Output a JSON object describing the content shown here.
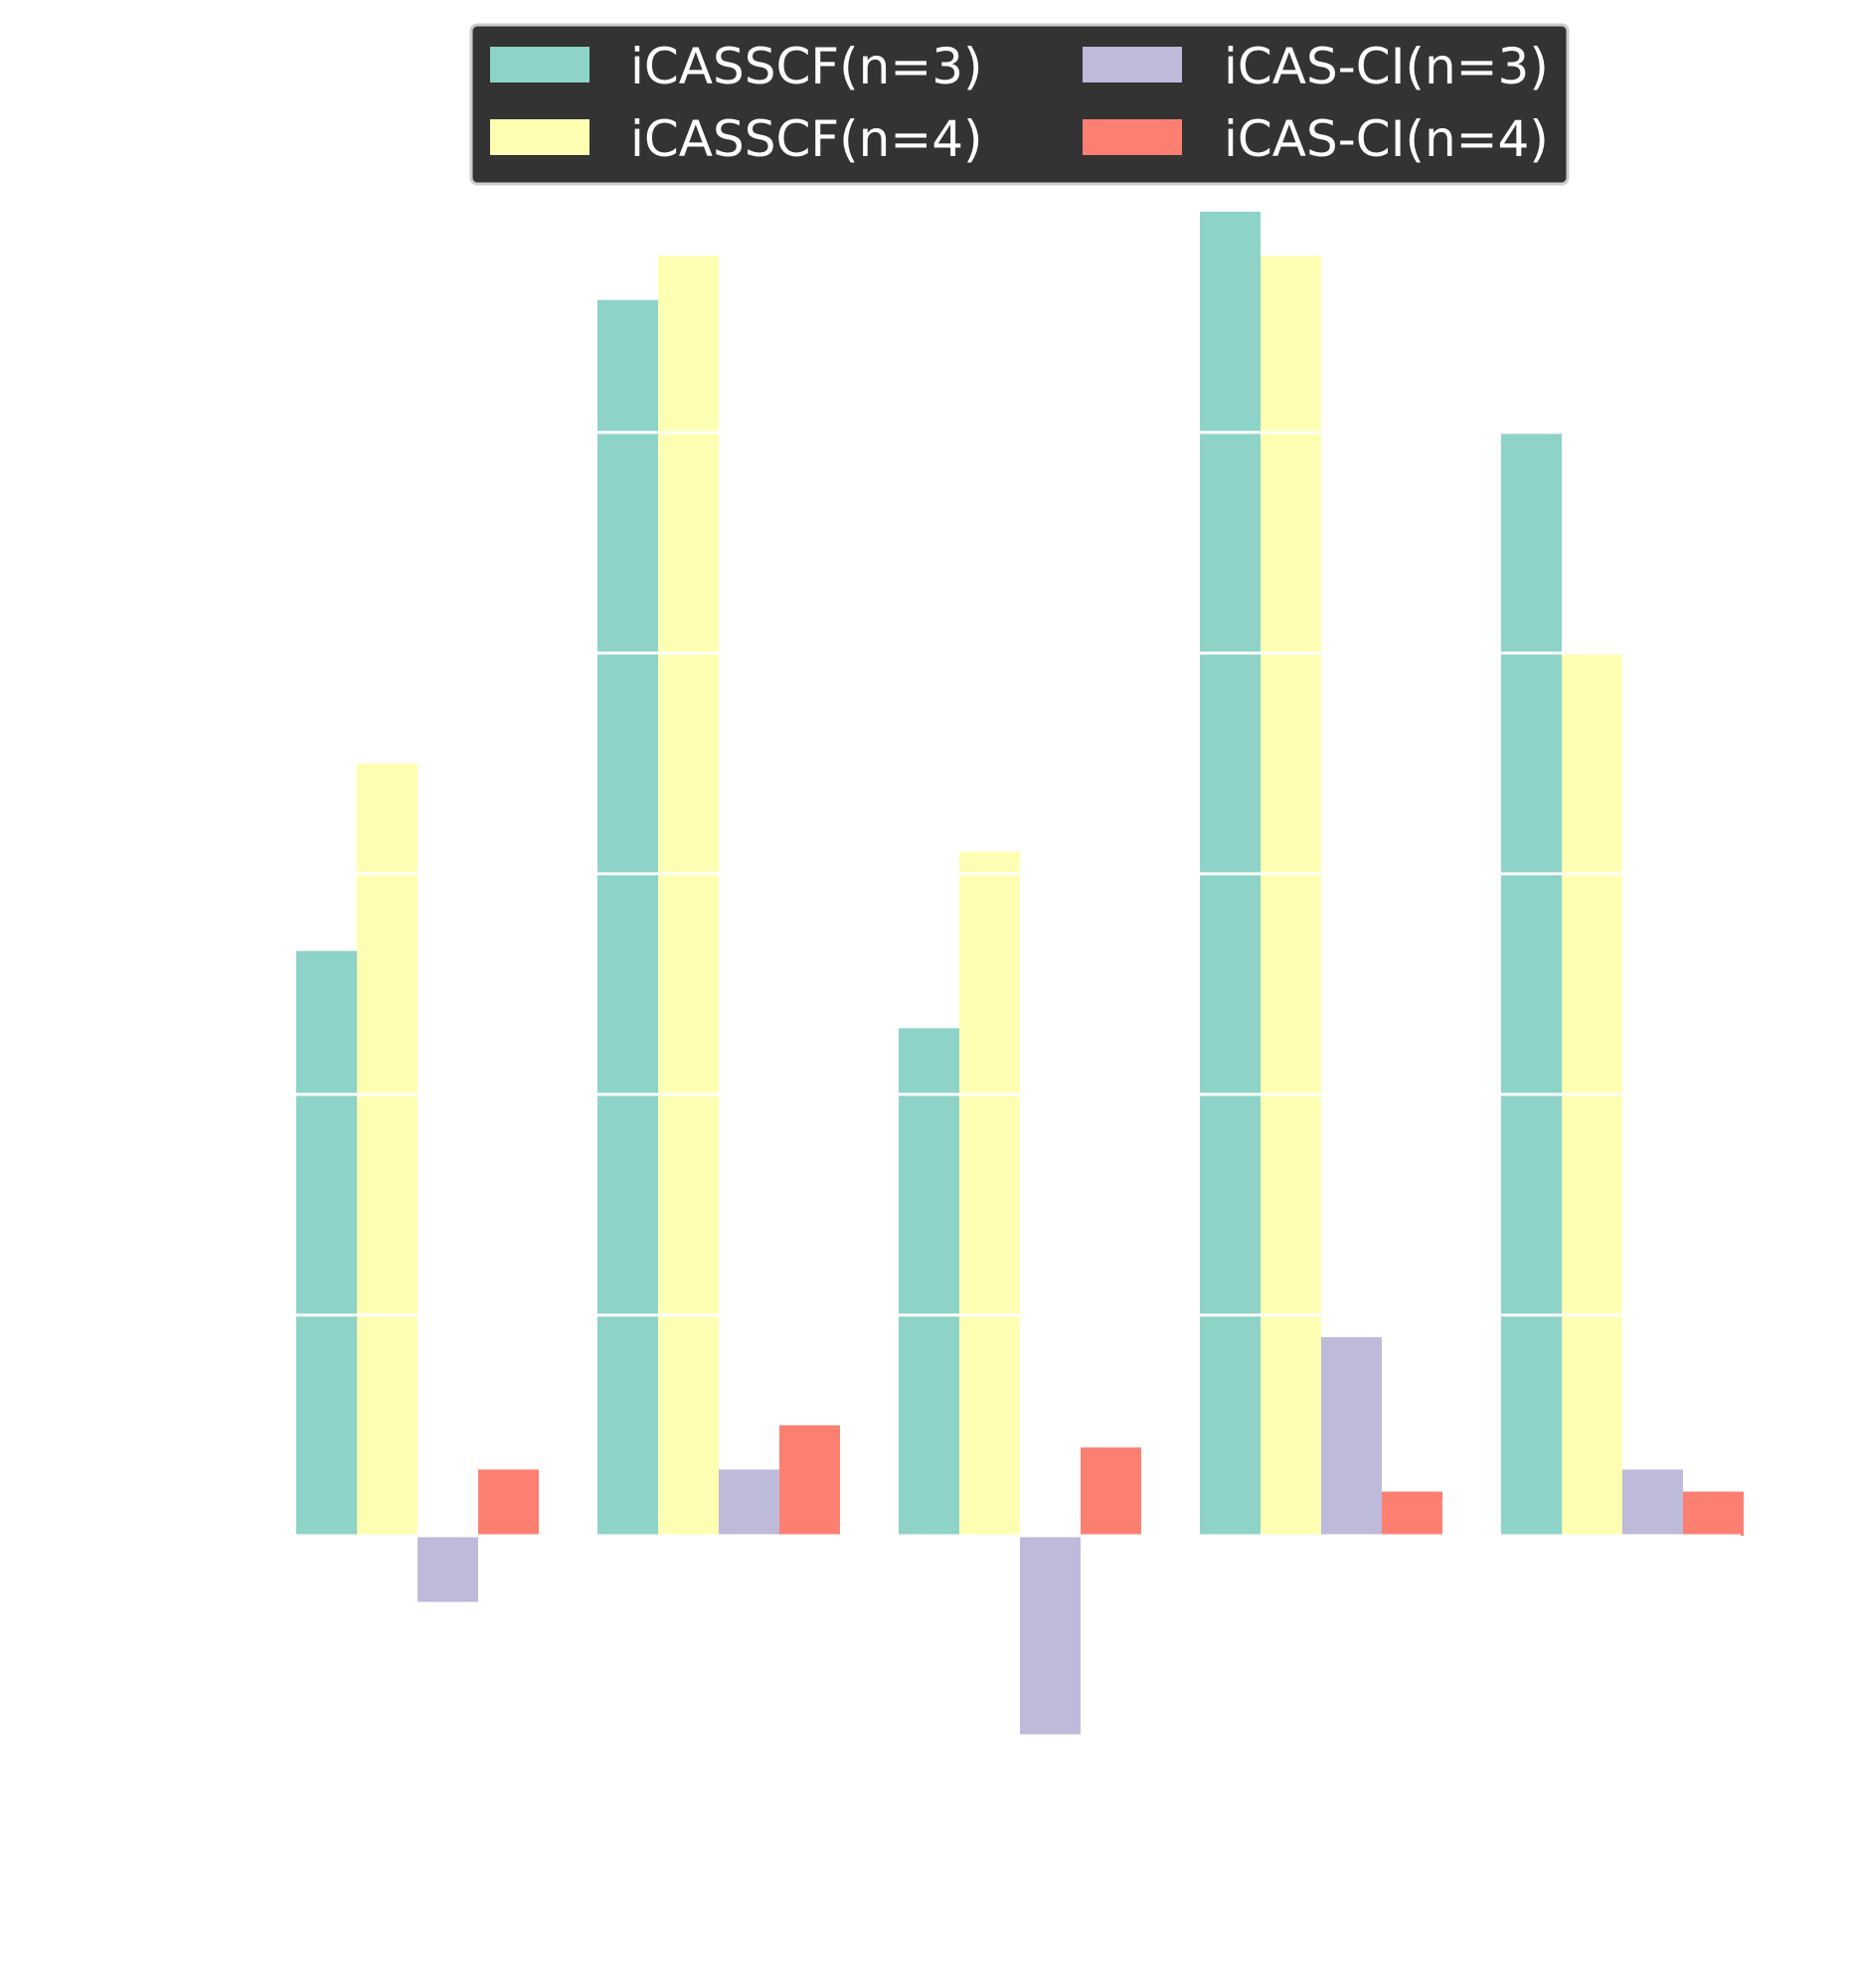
{
  "chart_data": {
    "type": "bar",
    "categories": [
      "",
      "",
      "",
      "",
      ""
    ],
    "series": [
      {
        "name": "iCASSCF(n=3)",
        "color": "#8dd3c7",
        "values": [
          2.65,
          5.6,
          2.3,
          6.0,
          5.0
        ]
      },
      {
        "name": "iCASSCF(n=4)",
        "color": "#ffffb3",
        "values": [
          3.5,
          5.8,
          3.1,
          5.8,
          4.0
        ]
      },
      {
        "name": "iCAS-CI(n=3)",
        "color": "#bebada",
        "values": [
          -0.3,
          0.3,
          -0.9,
          0.9,
          0.3
        ]
      },
      {
        "name": "iCAS-CI(n=4)",
        "color": "#fb8072",
        "values": [
          0.3,
          0.5,
          0.4,
          0.2,
          0.2
        ]
      }
    ],
    "ylim": [
      -1.2,
      6.1
    ],
    "grid": true,
    "grid_color": "#ffffff",
    "gridlines": [
      0,
      1,
      2,
      3,
      4,
      5
    ],
    "legend": {
      "placement": "top-center",
      "ncol": 2,
      "background": "#333333"
    },
    "xlabel": "",
    "ylabel": ""
  }
}
